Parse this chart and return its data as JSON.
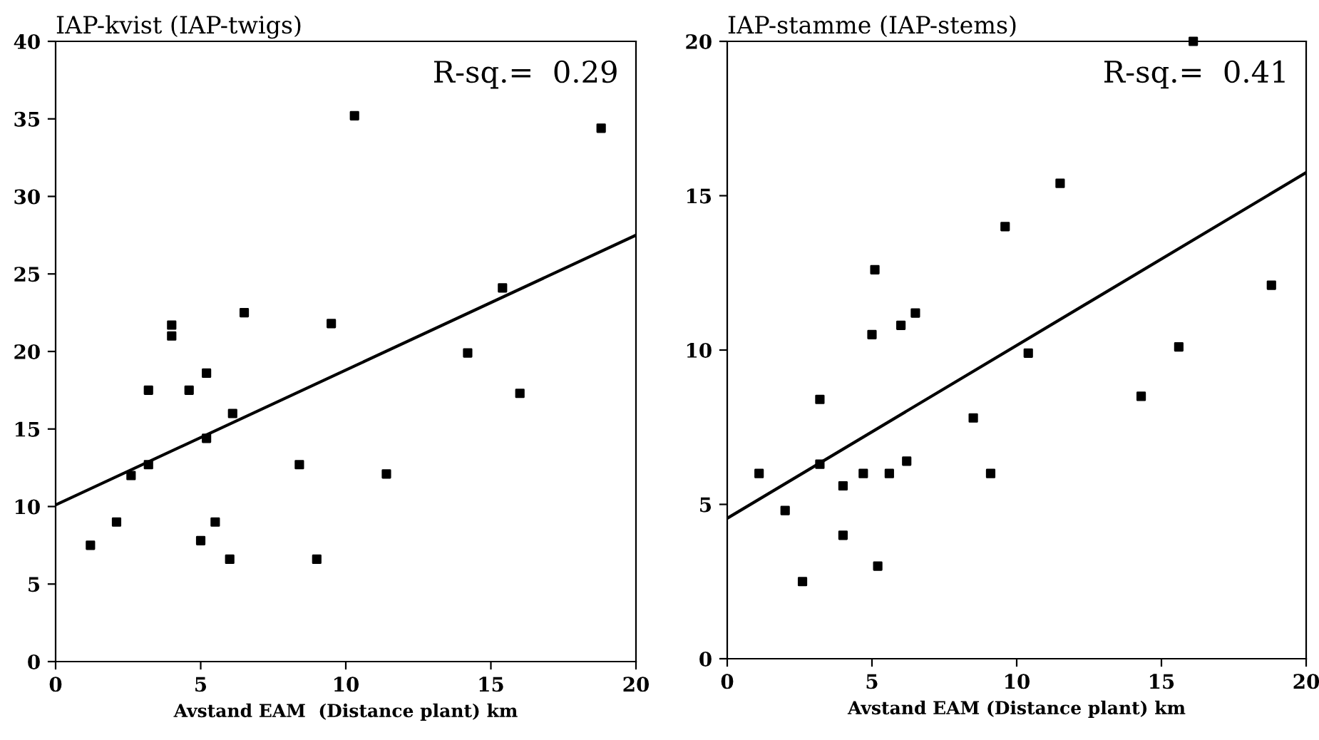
{
  "chart_data": [
    {
      "type": "scatter",
      "title": "IAP-kvist (IAP-twigs)",
      "xlabel": "Avstand EAM  (Distance plant) km",
      "annotations": [
        "R-sq.=  0.29"
      ],
      "xlim": [
        0,
        20
      ],
      "ylim": [
        0,
        40
      ],
      "xticks": [
        0,
        5,
        10,
        15,
        20
      ],
      "yticks": [
        0,
        5,
        10,
        15,
        20,
        25,
        30,
        35,
        40
      ],
      "grid": false,
      "legend": false,
      "marker": "square",
      "series": [
        {
          "color": "#000000",
          "x": [
            1.2,
            2.1,
            2.6,
            3.2,
            3.2,
            4.6,
            5.2,
            5.2,
            5.0,
            5.5,
            6.0,
            6.1,
            8.4,
            9.0,
            11.4,
            16.0,
            4.0,
            4.0,
            6.5,
            9.5,
            10.3,
            14.2,
            15.4,
            18.8
          ],
          "values": [
            7.5,
            9,
            12,
            12.7,
            17.5,
            17.5,
            18.6,
            14.4,
            7.8,
            9,
            6.6,
            16,
            12.7,
            6.6,
            12.1,
            17.3,
            21.7,
            21,
            22.5,
            21.8,
            35.2,
            19.9,
            24.1,
            34.4
          ]
        },
        {
          "type": "line",
          "color": "#000000",
          "marker": "none",
          "x": [
            0,
            20
          ],
          "values": [
            10.1,
            27.5
          ]
        }
      ]
    },
    {
      "type": "scatter",
      "title": "IAP-stamme (IAP-stems)",
      "xlabel": "Avstand EAM (Distance plant) km",
      "annotations": [
        "R-sq.=  0.41"
      ],
      "xlim": [
        0,
        20
      ],
      "ylim": [
        0,
        20
      ],
      "xticks": [
        0,
        5,
        10,
        15,
        20
      ],
      "yticks": [
        0,
        5,
        10,
        15,
        20
      ],
      "grid": false,
      "legend": false,
      "marker": "square",
      "series": [
        {
          "color": "#000000",
          "x": [
            1.1,
            2.0,
            2.6,
            3.2,
            3.2,
            4.0,
            4.0,
            4.7,
            5.2,
            5.6,
            6.2,
            8.5,
            9.1,
            14.3,
            5.0,
            5.1,
            6.0,
            6.5,
            9.6,
            10.4,
            11.5,
            15.6,
            18.8,
            16.1
          ],
          "values": [
            6,
            4.8,
            2.5,
            8.4,
            6.3,
            5.6,
            4,
            6,
            3,
            6,
            6.4,
            7.8,
            6,
            8.5,
            10.5,
            12.6,
            10.8,
            11.2,
            14,
            9.9,
            15.4,
            10.1,
            12.1,
            20
          ]
        },
        {
          "type": "line",
          "color": "#000000",
          "marker": "none",
          "x": [
            0,
            20
          ],
          "values": [
            4.55,
            15.75
          ]
        }
      ]
    }
  ]
}
